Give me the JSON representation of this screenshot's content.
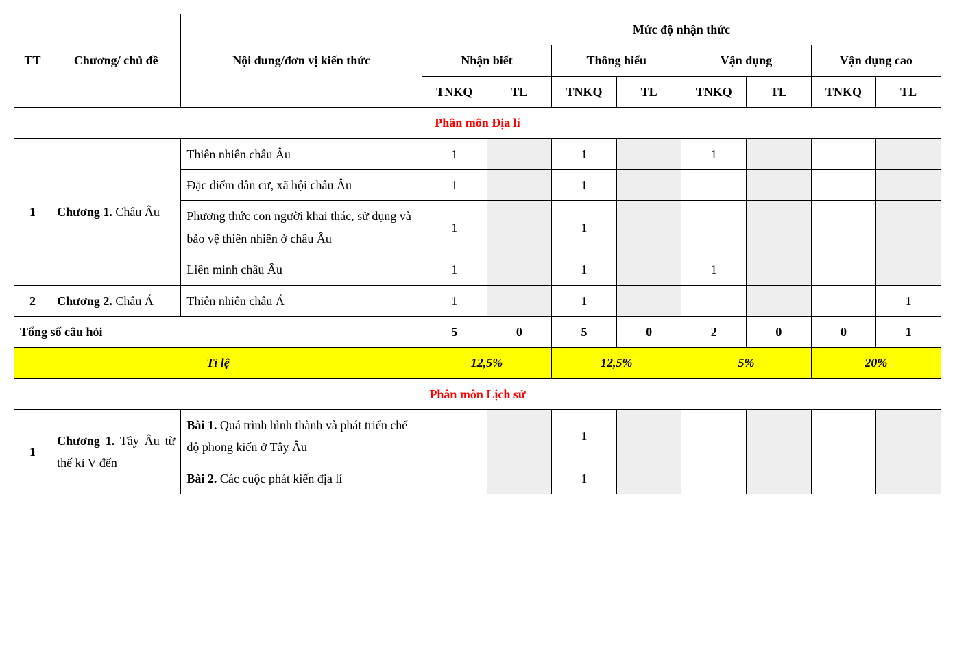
{
  "headers": {
    "tt": "TT",
    "chuong": "Chương/ chủ đề",
    "noidung": "Nội dung/đơn vị kiến thức",
    "mucdo": "Mức độ nhận thức",
    "nhanbiet": "Nhận biết",
    "thonghieu": "Thông hiểu",
    "vandung": "Vận dụng",
    "vandungcao": "Vận dụng cao",
    "tnkq": "TNKQ",
    "tl": "TL"
  },
  "section1_title": "Phân môn Địa lí",
  "section2_title": "Phân môn Lịch sử",
  "r1": {
    "tt": "1",
    "chuong_bold": "Chương 1.",
    "chuong_rest": " Châu Âu",
    "nd1": "Thiên nhiên châu Âu",
    "nd2": "Đặc điểm dân cư, xã hội châu Âu",
    "nd3": "Phương thức con người khai thác, sử dụng và bảo vệ thiên nhiên ở châu Âu",
    "nd4": "Liên minh châu Âu",
    "v1_1": "1",
    "v1_3": "1",
    "v1_5": "1",
    "v2_1": "1",
    "v2_3": "1",
    "v3_1": "1",
    "v3_3": "1",
    "v4_1": "1",
    "v4_3": "1",
    "v4_5": "1"
  },
  "r2": {
    "tt": "2",
    "chuong_bold": "Chương 2.",
    "chuong_rest": " Châu Á",
    "nd": "Thiên nhiên châu Á",
    "v_1": "1",
    "v_3": "1",
    "v_8": "1"
  },
  "total": {
    "label": "Tổng số câu hỏi",
    "c1": "5",
    "c2": "0",
    "c3": "5",
    "c4": "0",
    "c5": "2",
    "c6": "0",
    "c7": "0",
    "c8": "1"
  },
  "rate": {
    "label": "Tỉ lệ",
    "p1": "12,5%",
    "p2": "12,5%",
    "p3": "5%",
    "p4": "20%"
  },
  "ls1": {
    "tt": "1",
    "chuong_bold": "Chương 1.",
    "chuong_rest": " Tây Âu từ thế kỉ V đến",
    "nd1_bold": "Bài 1.",
    "nd1_rest": " Quá trình hình thành và phát triển chế độ phong kiến ở Tây Âu",
    "nd2_bold": "Bài 2.",
    "nd2_rest": " Các cuộc phát kiến địa lí",
    "v1_3": "1",
    "v2_3": "1"
  },
  "colors": {
    "border": "#000000",
    "shade": "#eeeeee",
    "highlight": "#ffff00",
    "section_text": "#ff0000",
    "text": "#000000",
    "background": "#ffffff"
  },
  "fonts": {
    "family": "Times New Roman",
    "base_size_pt": 14
  }
}
